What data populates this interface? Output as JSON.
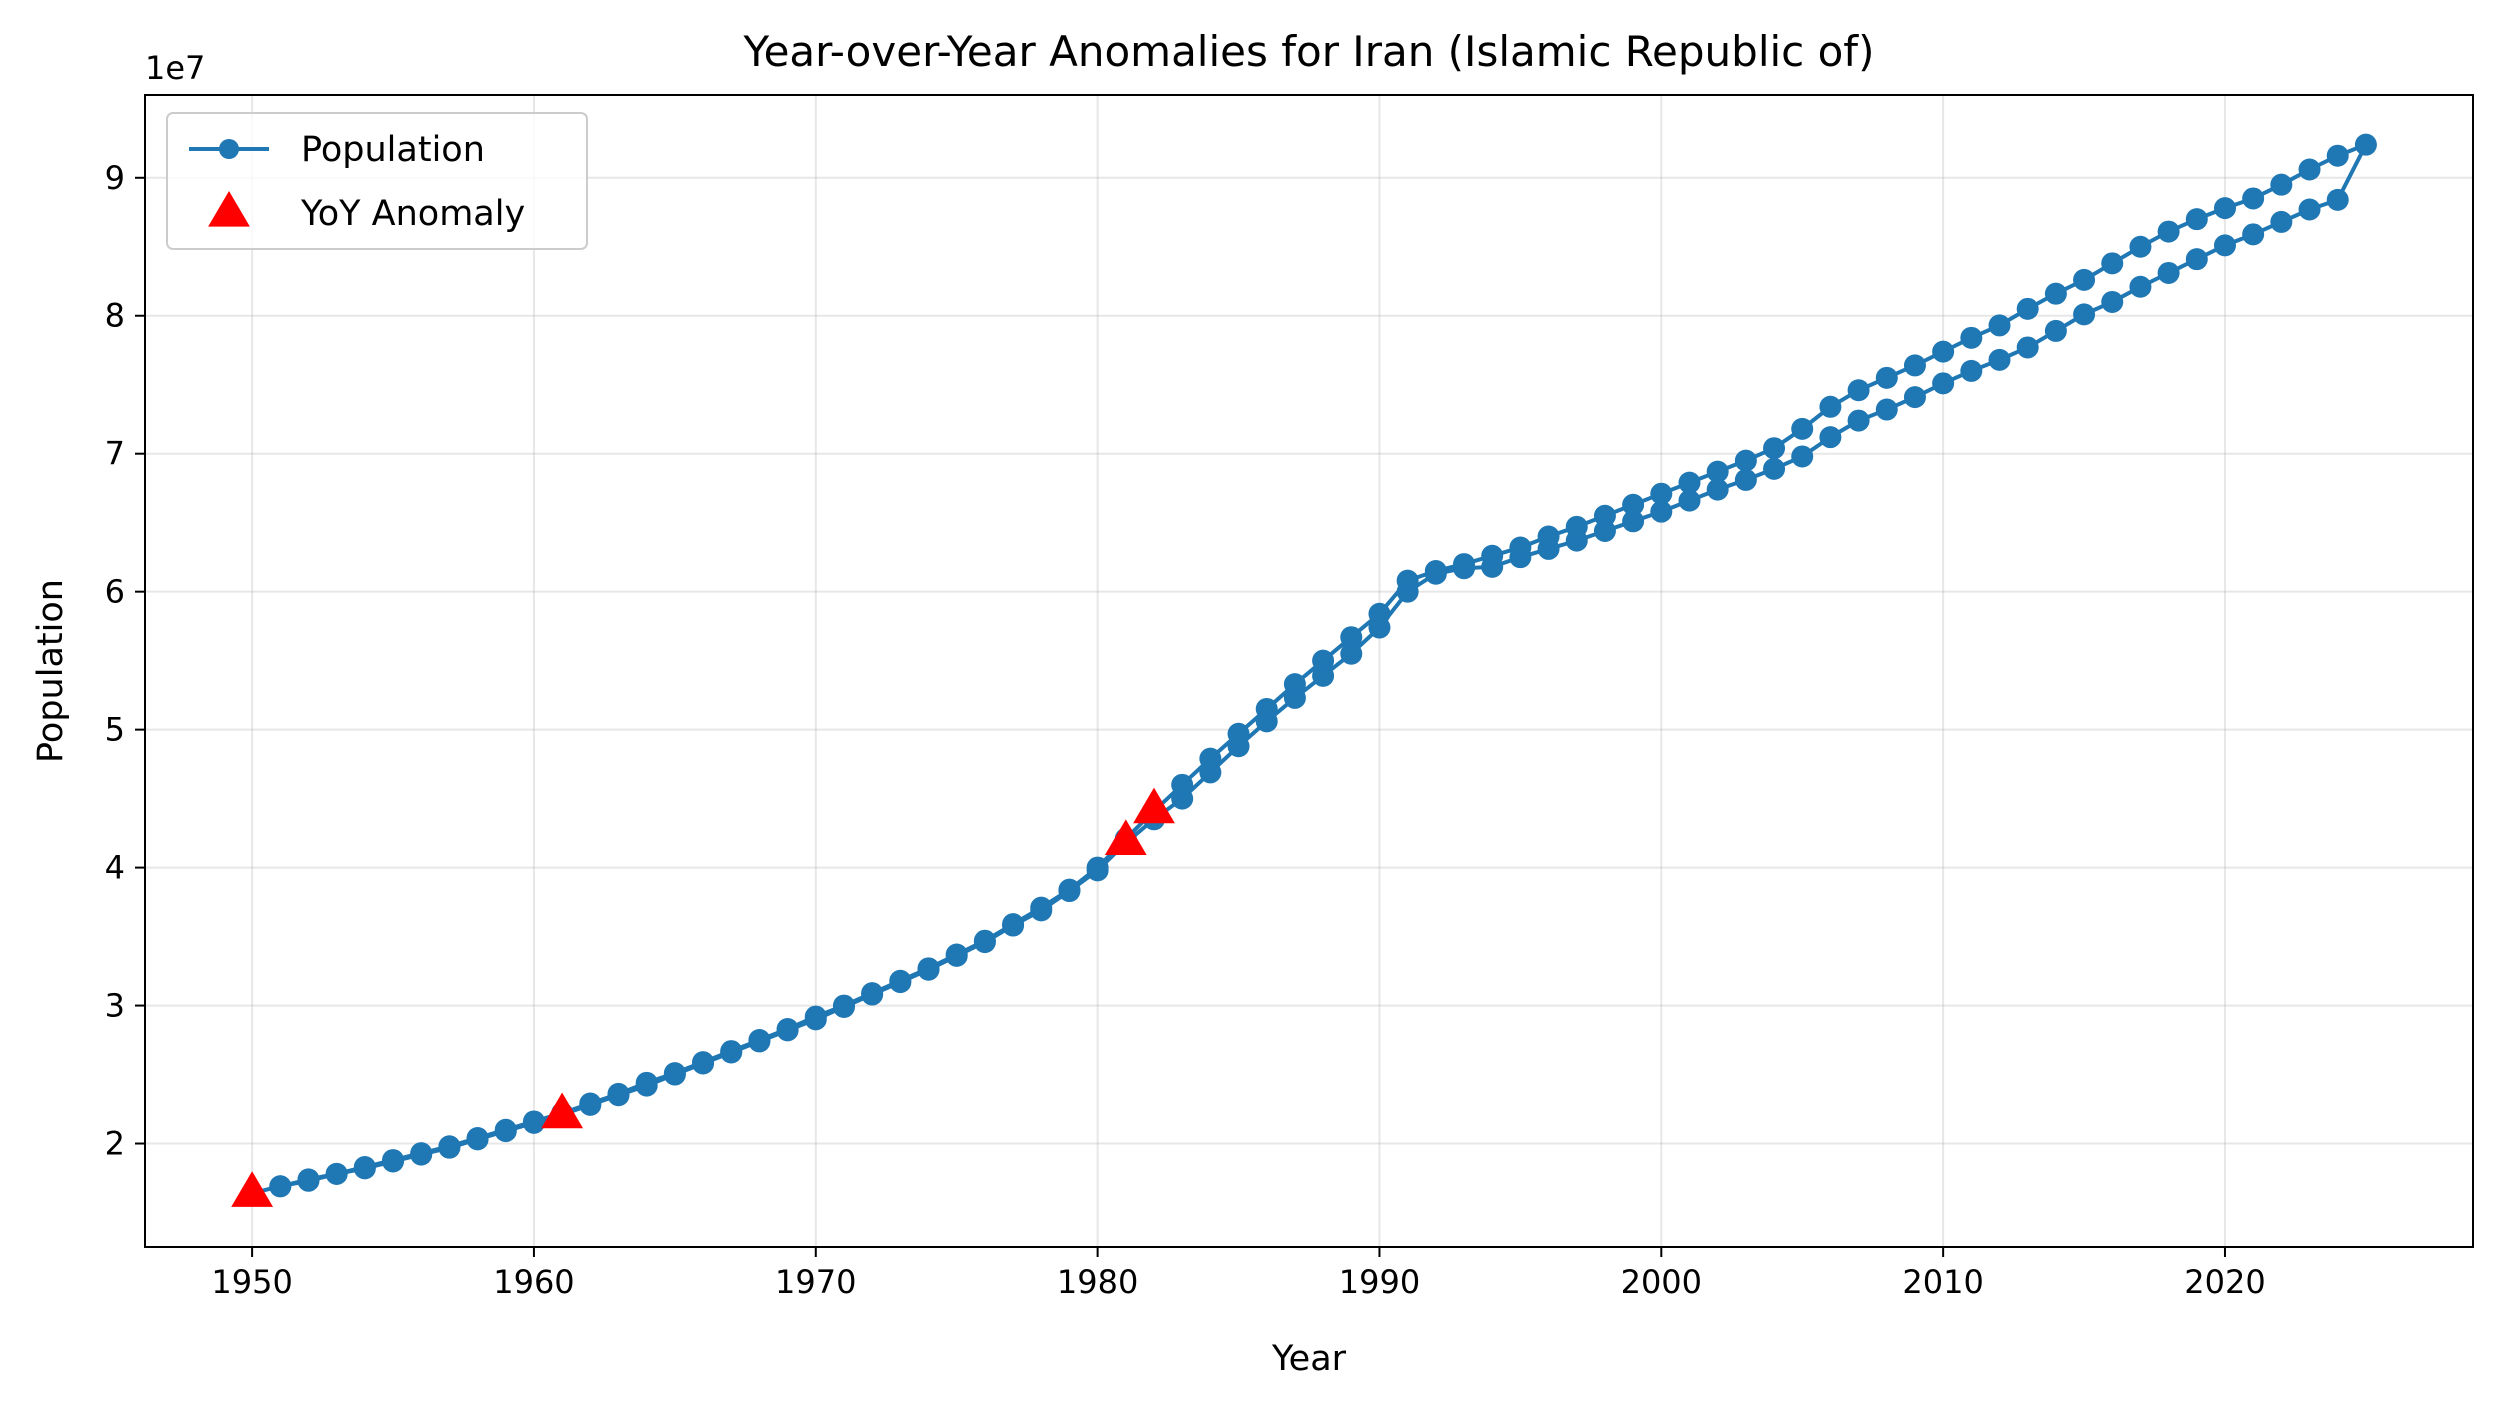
{
  "chart_data": {
    "type": "line",
    "title": "Year-over-Year Anomalies for Iran (Islamic Republic of)",
    "xlabel": "Year",
    "ylabel": "Population",
    "y_offset_label": "1e7",
    "xlim": [
      1946.2,
      2028.8
    ],
    "ylim": [
      12500000.0,
      96000000.0
    ],
    "xticks": [
      1950,
      1960,
      1970,
      1980,
      1990,
      2000,
      2010,
      2020
    ],
    "yticks": [
      20000000.0,
      30000000.0,
      40000000.0,
      50000000.0,
      60000000.0,
      70000000.0,
      80000000.0,
      90000000.0
    ],
    "ytick_labels": [
      "2",
      "3",
      "4",
      "5",
      "6",
      "7",
      "8",
      "9"
    ],
    "grid": true,
    "legend_position": "upper-left",
    "colors": {
      "line": "#1f77b4",
      "anomaly": "#ff0000"
    },
    "series": [
      {
        "name": "Population",
        "kind": "line-marker",
        "segments": [
          {
            "x": [
              1950,
              1951,
              1952,
              1953,
              1954,
              1955,
              1956,
              1957,
              1958,
              1959,
              1960,
              1961
            ],
            "y": [
              16400000,
              16900000,
              17300000,
              17800000,
              18200000,
              18700000,
              19200000,
              19700000,
              20300000,
              20900000,
              21500000,
              22100000
            ]
          },
          {
            "x": [
              1961,
              1962,
              1963,
              1964,
              1965,
              1966,
              1967,
              1968,
              1969,
              1970,
              1971,
              1972,
              1973,
              1974,
              1975,
              1976,
              1977,
              1978,
              1979,
              1980,
              1981,
              1982,
              1983,
              1984,
              1985,
              1986,
              1987,
              1988,
              1989,
              1990,
              1991,
              1992,
              1993,
              1994,
              1995,
              1996,
              1997,
              1998,
              1999,
              2000,
              2001,
              2002,
              2003,
              2004,
              2005,
              2006,
              2007,
              2008,
              2009,
              2010,
              2011,
              2012,
              2013,
              2014,
              2015,
              2016,
              2017,
              2018,
              2019,
              2020,
              2021,
              2022,
              2023,
              2024,
              2025
            ],
            "y": [
              22100000,
              22800000,
              23500000,
              24200000,
              25000000,
              25800000,
              26600000,
              27400000,
              28200000,
              29000000,
              29900000,
              30800000,
              31700000,
              32600000,
              33600000,
              34600000,
              35800000,
              36900000,
              38300000,
              39800000,
              41800000,
              43500000,
              45000000,
              46900000,
              48800000,
              50600000,
              52300000,
              53900000,
              55500000,
              57400000,
              60000000,
              61300000,
              61700000,
              61800000,
              62500000,
              63100000,
              63700000,
              64400000,
              65100000,
              65800000,
              66600000,
              67400000,
              68100000,
              68900000,
              69800000,
              71200000,
              72400000,
              73200000,
              74100000,
              75100000,
              76000000,
              76800000,
              77700000,
              78900000,
              80100000,
              81000000,
              82100000,
              83100000,
              84100000,
              85100000,
              85900000,
              86800000,
              87700000,
              88400000,
              92400000
            ]
          },
          {
            "x": [
              2024,
              2023,
              2022,
              2021,
              2020,
              2019,
              2018,
              2017,
              2016,
              2015,
              2014,
              2013,
              2012,
              2011,
              2010,
              2009,
              2008,
              2007,
              2006,
              2005,
              2004,
              2003,
              2002,
              2001,
              2000,
              1999,
              1998,
              1997,
              1996,
              1995,
              1994,
              1993,
              1992,
              1991,
              1990,
              1989,
              1988,
              1987,
              1986,
              1985,
              1984,
              1983,
              1982,
              1981,
              1980,
              1979,
              1978,
              1977,
              1976,
              1975,
              1974,
              1973,
              1972,
              1971,
              1970,
              1969,
              1968,
              1967,
              1966,
              1965,
              1964,
              1963,
              1962,
              1961,
              1960,
              1959,
              1958,
              1957,
              1956,
              1955,
              1954,
              1953,
              1952,
              1951
            ],
            "y": [
              91600000,
              90600000,
              89500000,
              88500000,
              87800000,
              87000000,
              86100000,
              85000000,
              83800000,
              82600000,
              81600000,
              80500000,
              79300000,
              78400000,
              77400000,
              76400000,
              75500000,
              74600000,
              73400000,
              71800000,
              70400000,
              69500000,
              68700000,
              67900000,
              67100000,
              66300000,
              65500000,
              64700000,
              64000000,
              63200000,
              62600000,
              62000000,
              61500000,
              60800000,
              58400000,
              56700000,
              55000000,
              53300000,
              51500000,
              49700000,
              47900000,
              46000000,
              44100000,
              42100000,
              40000000,
              38400000,
              37100000,
              35900000,
              34700000,
              33700000,
              32700000,
              31800000,
              30900000,
              30000000,
              29200000,
              28300000,
              27500000,
              26700000,
              25900000,
              25100000,
              24400000,
              23600000,
              22900000,
              22200000,
              21600000,
              21000000,
              20400000,
              19800000,
              19300000,
              18800000,
              18300000,
              17800000,
              17400000,
              16900000
            ]
          }
        ]
      },
      {
        "name": "YoY Anomaly",
        "kind": "scatter-triangle",
        "x": [
          1950,
          1961,
          1981,
          1982
        ],
        "y": [
          16400000,
          22100000,
          41900000,
          44200000
        ]
      }
    ]
  }
}
